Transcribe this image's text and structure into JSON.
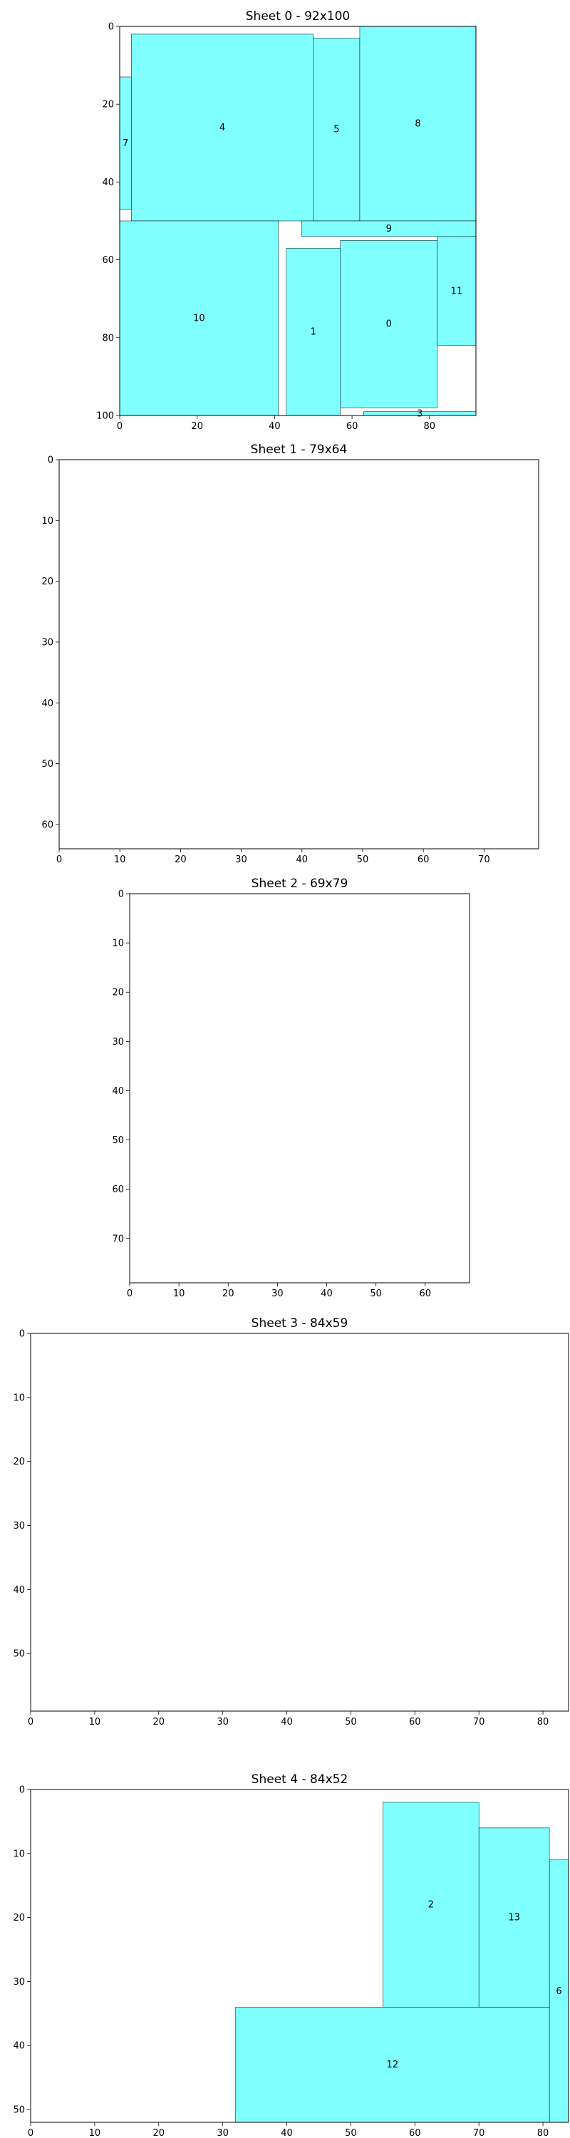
{
  "chart_data": [
    {
      "type": "bar",
      "title": "Sheet 0 - 92x100",
      "width": 92,
      "height": 100,
      "xticks": [
        0,
        20,
        40,
        60,
        80
      ],
      "yticks": [
        0,
        20,
        40,
        60,
        80,
        100
      ],
      "fill_color": "#80ffff",
      "pieces": [
        {
          "id": "0",
          "x": 57,
          "y": 55,
          "w": 25,
          "h": 43
        },
        {
          "id": "1",
          "x": 43,
          "y": 57,
          "w": 14,
          "h": 43
        },
        {
          "id": "3",
          "x": 63,
          "y": 99,
          "w": 29,
          "h": 1
        },
        {
          "id": "4",
          "x": 3,
          "y": 2,
          "w": 47,
          "h": 48
        },
        {
          "id": "5",
          "x": 50,
          "y": 3,
          "w": 12,
          "h": 47
        },
        {
          "id": "7",
          "x": 0,
          "y": 13,
          "w": 3,
          "h": 34
        },
        {
          "id": "8",
          "x": 62,
          "y": 0,
          "w": 30,
          "h": 50
        },
        {
          "id": "9",
          "x": 47,
          "y": 50,
          "w": 45,
          "h": 4
        },
        {
          "id": "10",
          "x": 0,
          "y": 50,
          "w": 41,
          "h": 50
        },
        {
          "id": "11",
          "x": 82,
          "y": 54,
          "w": 10,
          "h": 28
        }
      ]
    },
    {
      "type": "bar",
      "title": "Sheet 1 - 79x64",
      "width": 79,
      "height": 64,
      "xticks": [
        0,
        10,
        20,
        30,
        40,
        50,
        60,
        70
      ],
      "yticks": [
        0,
        10,
        20,
        30,
        40,
        50,
        60
      ],
      "fill_color": "#80ffff",
      "pieces": []
    },
    {
      "type": "bar",
      "title": "Sheet 2 - 69x79",
      "width": 69,
      "height": 79,
      "xticks": [
        0,
        10,
        20,
        30,
        40,
        50,
        60
      ],
      "yticks": [
        0,
        10,
        20,
        30,
        40,
        50,
        60,
        70
      ],
      "fill_color": "#80ffff",
      "pieces": []
    },
    {
      "type": "bar",
      "title": "Sheet 3 - 84x59",
      "width": 84,
      "height": 59,
      "xticks": [
        0,
        10,
        20,
        30,
        40,
        50,
        60,
        70,
        80
      ],
      "yticks": [
        0,
        10,
        20,
        30,
        40,
        50
      ],
      "fill_color": "#80ffff",
      "pieces": []
    },
    {
      "type": "bar",
      "title": "Sheet 4 - 84x52",
      "width": 84,
      "height": 52,
      "xticks": [
        0,
        10,
        20,
        30,
        40,
        50,
        60,
        70,
        80
      ],
      "yticks": [
        0,
        10,
        20,
        30,
        40,
        50
      ],
      "fill_color": "#80ffff",
      "pieces": [
        {
          "id": "2",
          "x": 55,
          "y": 2,
          "w": 15,
          "h": 32
        },
        {
          "id": "6",
          "x": 81,
          "y": 11,
          "w": 3,
          "h": 41
        },
        {
          "id": "12",
          "x": 32,
          "y": 34,
          "w": 49,
          "h": 18
        },
        {
          "id": "13",
          "x": 70,
          "y": 6,
          "w": 11,
          "h": 28
        }
      ]
    }
  ]
}
